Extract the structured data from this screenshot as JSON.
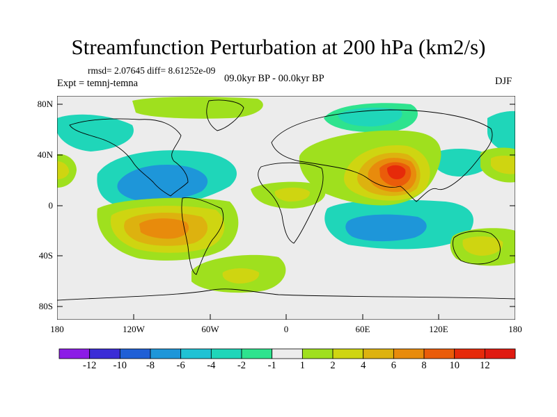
{
  "title": "Streamfunction Perturbation at 200 hPa (km2/s)",
  "stats": "rmsd= 2.07645 diff= 8.61252e-09",
  "experiment": "Expt = temnj-temna",
  "period": "09.0kyr BP - 00.0kyr BP",
  "season": "DJF",
  "lat_ticks": [
    "80N",
    "40N",
    "0",
    "40S",
    "80S"
  ],
  "lon_ticks": [
    "180",
    "120W",
    "60W",
    "0",
    "60E",
    "120E",
    "180"
  ],
  "colorbar": {
    "labels": [
      "-12",
      "-10",
      "-8",
      "-6",
      "-4",
      "-2",
      "-1",
      "1",
      "2",
      "4",
      "6",
      "8",
      "10",
      "12"
    ],
    "colors": [
      "#8c1ce6",
      "#3b2cd6",
      "#1f5fd6",
      "#1e96d9",
      "#20c2d4",
      "#1fd6b9",
      "#2ee38e",
      "#ececec",
      "#9fe01e",
      "#cfd511",
      "#ddb20f",
      "#e88b0c",
      "#ea5c0a",
      "#e62a0a",
      "#e01a10"
    ]
  },
  "map_data": {
    "type": "contour-filled",
    "variable": "Streamfunction Perturbation",
    "level": "200 hPa",
    "units": "km2/s",
    "lon_range": [
      -180,
      180
    ],
    "lat_range": [
      -90,
      90
    ],
    "regions": [
      {
        "lon": 88,
        "lat": 27,
        "value": 10
      },
      {
        "lon": -95,
        "lat": -18,
        "value": 8
      },
      {
        "lon": -35,
        "lat": -55,
        "value": 4
      },
      {
        "lon": 155,
        "lat": -28,
        "value": 3
      },
      {
        "lon": 165,
        "lat": 35,
        "value": 4
      },
      {
        "lon": -175,
        "lat": 30,
        "value": 3
      },
      {
        "lon": -125,
        "lat": 15,
        "value": -4
      },
      {
        "lon": 65,
        "lat": -18,
        "value": -4
      },
      {
        "lon": -10,
        "lat": 5,
        "value": 2
      },
      {
        "lon": 45,
        "lat": 78,
        "value": -2
      },
      {
        "lon": -170,
        "lat": 60,
        "value": -2
      },
      {
        "lon": 170,
        "lat": 60,
        "value": -2
      },
      {
        "lon": -100,
        "lat": 78,
        "value": 2
      }
    ]
  }
}
